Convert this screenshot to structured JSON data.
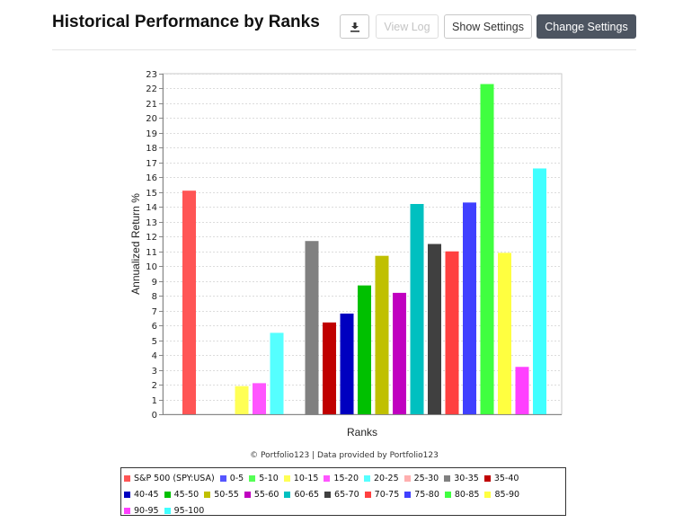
{
  "header": {
    "title": "Historical Performance by Ranks",
    "buttons": {
      "view_log": "View Log",
      "show_settings": "Show Settings",
      "change_settings": "Change Settings"
    },
    "download_icon": "download-icon"
  },
  "chart_data": {
    "type": "bar",
    "xlabel": "Ranks",
    "ylabel": "Annualized Return %",
    "ylim": [
      0,
      23
    ],
    "y_ticks": [
      "0",
      "1",
      "2",
      "3",
      "4",
      "5",
      "6",
      "7",
      "8",
      "9",
      "10",
      "11",
      "12",
      "13",
      "14",
      "15",
      "16",
      "17",
      "18",
      "19",
      "20",
      "21",
      "22",
      "23"
    ],
    "grid": "horizontal dashed",
    "legend_position": "bottom",
    "credit": "© Portfolio123 | Data provided by Portfolio123",
    "series": [
      {
        "name": "S&P 500 (SPY:USA)",
        "value": 15.1,
        "color": "#ff5555"
      },
      {
        "name": "0-5",
        "value": null,
        "color": "#5555ff"
      },
      {
        "name": "5-10",
        "value": null,
        "color": "#55ff55"
      },
      {
        "name": "10-15",
        "value": 1.9,
        "color": "#ffff55"
      },
      {
        "name": "15-20",
        "value": 2.1,
        "color": "#ff55ff"
      },
      {
        "name": "20-25",
        "value": 5.5,
        "color": "#55ffff"
      },
      {
        "name": "25-30",
        "value": null,
        "color": "#ffafaf"
      },
      {
        "name": "30-35",
        "value": 11.7,
        "color": "#808080"
      },
      {
        "name": "35-40",
        "value": 6.2,
        "color": "#c00000"
      },
      {
        "name": "40-45",
        "value": 6.8,
        "color": "#0000c0"
      },
      {
        "name": "45-50",
        "value": 8.7,
        "color": "#00c000"
      },
      {
        "name": "50-55",
        "value": 10.7,
        "color": "#c0c000"
      },
      {
        "name": "55-60",
        "value": 8.2,
        "color": "#c000c0"
      },
      {
        "name": "60-65",
        "value": 14.2,
        "color": "#00c0c0"
      },
      {
        "name": "65-70",
        "value": 11.5,
        "color": "#404040"
      },
      {
        "name": "70-75",
        "value": 11.0,
        "color": "#ff4040"
      },
      {
        "name": "75-80",
        "value": 14.3,
        "color": "#4040ff"
      },
      {
        "name": "80-85",
        "value": 22.3,
        "color": "#40ff40"
      },
      {
        "name": "85-90",
        "value": 10.9,
        "color": "#ffff40"
      },
      {
        "name": "90-95",
        "value": 3.2,
        "color": "#ff40ff"
      },
      {
        "name": "95-100",
        "value": 16.6,
        "color": "#40ffff"
      }
    ]
  }
}
